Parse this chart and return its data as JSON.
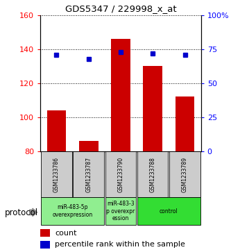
{
  "title": "GDS5347 / 229998_x_at",
  "samples": [
    "GSM1233786",
    "GSM1233787",
    "GSM1233790",
    "GSM1233788",
    "GSM1233789"
  ],
  "counts": [
    104,
    86,
    146,
    130,
    112
  ],
  "percentiles": [
    71,
    68,
    73,
    72,
    71
  ],
  "ylim_left": [
    80,
    160
  ],
  "ylim_right": [
    0,
    100
  ],
  "yticks_left": [
    80,
    100,
    120,
    140,
    160
  ],
  "yticks_right": [
    0,
    25,
    50,
    75,
    100
  ],
  "ytick_labels_right": [
    "0",
    "25",
    "50",
    "75",
    "100%"
  ],
  "bar_color": "#cc0000",
  "dot_color": "#0000cc",
  "group_info": [
    {
      "start": 0,
      "end": 1,
      "label": "miR-483-5p\noverexpression",
      "color": "#90EE90"
    },
    {
      "start": 2,
      "end": 2,
      "label": "miR-483-3\np overexpr\nession",
      "color": "#90EE90"
    },
    {
      "start": 3,
      "end": 4,
      "label": "control",
      "color": "#33DD33"
    }
  ],
  "protocol_label": "protocol",
  "legend_count_label": "count",
  "legend_percentile_label": "percentile rank within the sample",
  "sample_box_color": "#cccccc",
  "bar_width": 0.6,
  "base_value": 80
}
